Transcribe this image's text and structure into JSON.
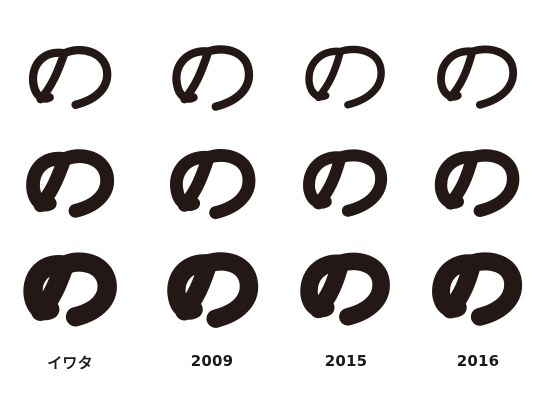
{
  "glyph_character": "の",
  "ink_color": "#231815",
  "columns": [
    {
      "label": "イワタ"
    },
    {
      "label": "2009"
    },
    {
      "label": "2015"
    },
    {
      "label": "2016"
    }
  ],
  "rows": [
    {
      "weight": "light"
    },
    {
      "weight": "medium"
    },
    {
      "weight": "bold"
    }
  ]
}
